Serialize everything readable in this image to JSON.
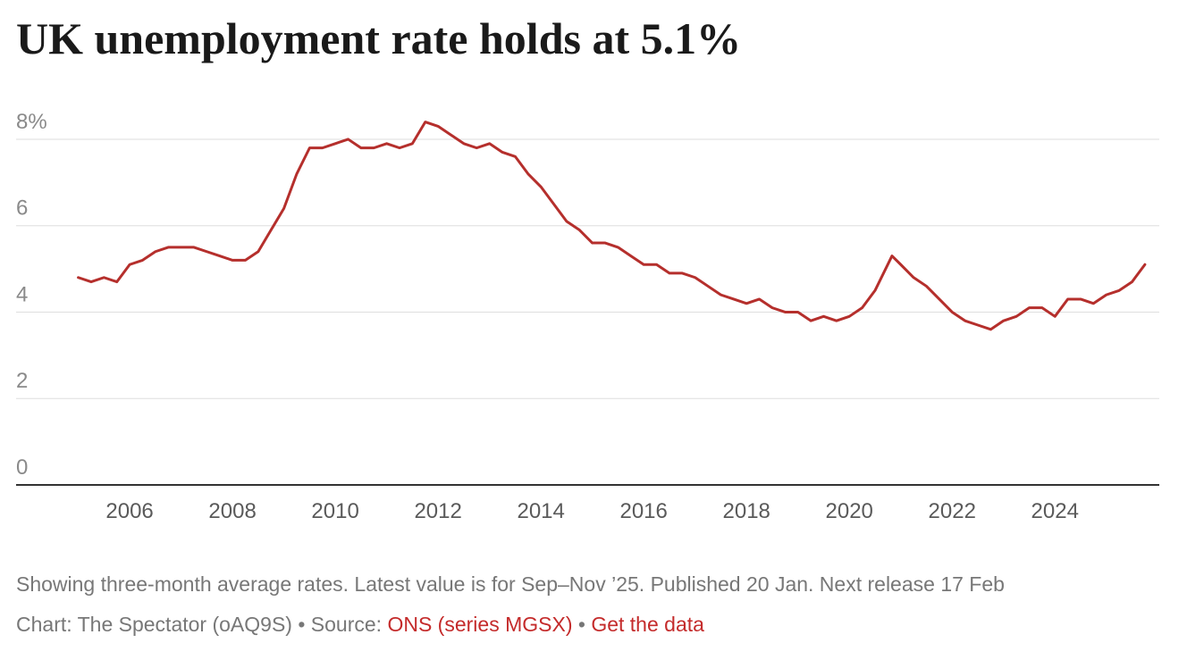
{
  "chart_data": {
    "type": "line",
    "title": "UK unemployment rate holds at 5.1%",
    "x": [
      2005,
      2005.25,
      2005.5,
      2005.75,
      2006,
      2006.25,
      2006.5,
      2006.75,
      2007,
      2007.25,
      2007.5,
      2007.75,
      2008,
      2008.25,
      2008.5,
      2008.75,
      2009,
      2009.25,
      2009.5,
      2009.75,
      2010,
      2010.25,
      2010.5,
      2010.75,
      2011,
      2011.25,
      2011.5,
      2011.75,
      2012,
      2012.25,
      2012.5,
      2012.75,
      2013,
      2013.25,
      2013.5,
      2013.75,
      2014,
      2014.25,
      2014.5,
      2014.75,
      2015,
      2015.25,
      2015.5,
      2015.75,
      2016,
      2016.25,
      2016.5,
      2016.75,
      2017,
      2017.25,
      2017.5,
      2017.75,
      2018,
      2018.25,
      2018.5,
      2018.75,
      2019,
      2019.25,
      2019.5,
      2019.75,
      2020,
      2020.25,
      2020.5,
      2020.83,
      2021,
      2021.25,
      2021.5,
      2021.75,
      2022,
      2022.25,
      2022.5,
      2022.75,
      2023,
      2023.25,
      2023.5,
      2023.75,
      2024,
      2024.25,
      2024.5,
      2024.75,
      2025,
      2025.25,
      2025.5,
      2025.75
    ],
    "values": [
      4.8,
      4.7,
      4.8,
      4.7,
      5.1,
      5.2,
      5.4,
      5.5,
      5.5,
      5.5,
      5.4,
      5.3,
      5.2,
      5.2,
      5.4,
      5.9,
      6.4,
      7.2,
      7.8,
      7.8,
      7.9,
      8.0,
      7.8,
      7.8,
      7.9,
      7.8,
      7.9,
      8.4,
      8.3,
      8.1,
      7.9,
      7.8,
      7.9,
      7.7,
      7.6,
      7.2,
      6.9,
      6.5,
      6.1,
      5.9,
      5.6,
      5.6,
      5.5,
      5.3,
      5.1,
      5.1,
      4.9,
      4.9,
      4.8,
      4.6,
      4.4,
      4.3,
      4.2,
      4.3,
      4.1,
      4.0,
      4.0,
      3.8,
      3.9,
      3.8,
      3.9,
      4.1,
      4.5,
      5.3,
      5.1,
      4.8,
      4.6,
      4.3,
      4.0,
      3.8,
      3.7,
      3.6,
      3.8,
      3.9,
      4.1,
      4.1,
      3.9,
      4.3,
      4.3,
      4.2,
      4.4,
      4.5,
      4.7,
      5.1
    ],
    "color": "#b52f2c",
    "xlim": [
      2003.79,
      2026.03
    ],
    "xticks": [
      2006,
      2008,
      2010,
      2012,
      2014,
      2016,
      2018,
      2020,
      2022,
      2024
    ],
    "ylim": [
      0,
      8.5
    ],
    "yticks": [
      0,
      2,
      4,
      6,
      {
        "value": 8,
        "label": "8%"
      }
    ],
    "grid": true,
    "notes": "Showing three-month average rates. Latest value is for Sep–Nov ’25. Published 20 Jan. Next release 17 Feb",
    "footer": {
      "credit": "Chart: The Spectator (oAQ9S)",
      "separator": "•",
      "source_label": "Source:",
      "source_link": "ONS (series MGSX)",
      "data_link": "Get the data"
    }
  }
}
